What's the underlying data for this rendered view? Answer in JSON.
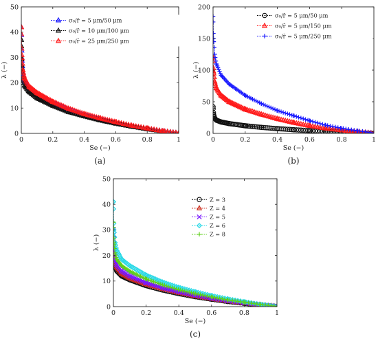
{
  "chart_data": [
    {
      "type": "line",
      "caption": "(a)",
      "xlabel": "Se (−)",
      "ylabel": "λ (−)",
      "xlim": [
        0,
        1
      ],
      "ylim": [
        0,
        50
      ],
      "xticks": [
        "0",
        "0.2",
        "0.4",
        "0.6",
        "0.8",
        "1"
      ],
      "yticks": [
        "0",
        "10",
        "20",
        "30",
        "40",
        "50"
      ],
      "legend_position": "top-right",
      "grid": false,
      "series": [
        {
          "name": "σ₀/r̄ = 5 μm/50 μm",
          "color": "#1a1aff",
          "marker": "triangle",
          "x": [
            0.0,
            0.003,
            0.01,
            0.02,
            0.05,
            0.1,
            0.2,
            0.3,
            0.4,
            0.5,
            0.6,
            0.7,
            0.8,
            0.9,
            1.0
          ],
          "y": [
            42,
            30,
            24,
            21,
            18,
            15.5,
            12,
            9.5,
            7.5,
            5.8,
            4.3,
            3.0,
            1.9,
            0.9,
            0.1
          ]
        },
        {
          "name": "σ₀/r̄ = 10 μm/100 μm",
          "color": "#111111",
          "marker": "triangle",
          "x": [
            0.0,
            0.003,
            0.01,
            0.02,
            0.05,
            0.1,
            0.2,
            0.3,
            0.4,
            0.5,
            0.6,
            0.7,
            0.8,
            0.9,
            1.0
          ],
          "y": [
            37,
            27,
            22,
            19,
            16.5,
            14,
            11,
            8.5,
            6.8,
            5.2,
            3.9,
            2.7,
            1.7,
            0.8,
            0.1
          ]
        },
        {
          "name": "σ₀/r̄ = 25 μm/250 μm",
          "color": "#ff1a1a",
          "marker": "triangle",
          "x": [
            0.0,
            0.003,
            0.01,
            0.02,
            0.05,
            0.1,
            0.2,
            0.3,
            0.4,
            0.5,
            0.6,
            0.7,
            0.8,
            0.9,
            1.0
          ],
          "y": [
            42,
            31,
            25,
            22,
            18.5,
            16,
            12.5,
            9.8,
            7.7,
            6.0,
            4.5,
            3.1,
            2.0,
            0.9,
            0.1
          ]
        }
      ]
    },
    {
      "type": "line",
      "caption": "(b)",
      "xlabel": "Se (−)",
      "ylabel": "λ (−)",
      "xlim": [
        0,
        1
      ],
      "ylim": [
        0,
        200
      ],
      "xticks": [
        "0",
        "0.2",
        "0.4",
        "0.6",
        "0.8",
        "1"
      ],
      "yticks": [
        "0",
        "50",
        "100",
        "150",
        "200"
      ],
      "legend_position": "top-right",
      "grid": false,
      "series": [
        {
          "name": "σ₀/r̄ = 5 μm/50 μm",
          "color": "#111111",
          "marker": "circle",
          "x": [
            0.0,
            0.003,
            0.01,
            0.02,
            0.05,
            0.1,
            0.2,
            0.3,
            0.4,
            0.5,
            0.6,
            0.7,
            0.8,
            0.9,
            1.0
          ],
          "y": [
            42,
            30,
            24,
            21,
            18,
            15.5,
            12,
            9.5,
            7.5,
            5.8,
            4.3,
            3.0,
            1.9,
            0.9,
            0.1
          ]
        },
        {
          "name": "σ₀/r̄ = 5 μm/150 μm",
          "color": "#ff1a1a",
          "marker": "triangle",
          "x": [
            0.0,
            0.003,
            0.01,
            0.02,
            0.05,
            0.1,
            0.2,
            0.3,
            0.4,
            0.5,
            0.6,
            0.7,
            0.8,
            0.9,
            1.0
          ],
          "y": [
            120,
            98,
            82,
            72,
            60,
            50,
            38,
            30,
            23,
            17,
            12,
            8,
            5,
            2.5,
            0.3
          ]
        },
        {
          "name": "σ₀/r̄ = 5 μm/250 μm",
          "color": "#1a1aff",
          "marker": "plus",
          "x": [
            0.0,
            0.003,
            0.01,
            0.02,
            0.05,
            0.1,
            0.2,
            0.3,
            0.4,
            0.5,
            0.6,
            0.7,
            0.8,
            0.9,
            1.0
          ],
          "y": [
            185,
            150,
            125,
            110,
            92,
            78,
            60,
            47,
            36,
            28,
            20,
            13,
            8,
            4,
            0.5
          ]
        }
      ]
    },
    {
      "type": "line",
      "caption": "(c)",
      "xlabel": "Se (−)",
      "ylabel": "λ (−)",
      "xlim": [
        0,
        1
      ],
      "ylim": [
        0,
        50
      ],
      "xticks": [
        "0",
        "0.2",
        "0.4",
        "0.6",
        "0.8",
        "1"
      ],
      "yticks": [
        "0",
        "10",
        "20",
        "30",
        "40",
        "50"
      ],
      "legend_position": "top-right",
      "grid": false,
      "series": [
        {
          "name": "Z = 3",
          "color": "#111111",
          "marker": "circle",
          "x": [
            0.0,
            0.003,
            0.01,
            0.02,
            0.05,
            0.1,
            0.2,
            0.3,
            0.4,
            0.5,
            0.6,
            0.7,
            0.8,
            0.9,
            1.0
          ],
          "y": [
            25,
            19,
            16,
            14,
            12,
            10.5,
            8.2,
            6.5,
            5.1,
            3.9,
            2.9,
            2.0,
            1.3,
            0.6,
            0.1
          ]
        },
        {
          "name": "Z = 4",
          "color": "#cc2a1a",
          "marker": "triangle",
          "x": [
            0.0,
            0.003,
            0.01,
            0.02,
            0.05,
            0.1,
            0.2,
            0.3,
            0.4,
            0.5,
            0.6,
            0.7,
            0.8,
            0.9,
            1.0
          ],
          "y": [
            28,
            21,
            17.5,
            15.5,
            13,
            11.2,
            8.8,
            7.0,
            5.5,
            4.2,
            3.1,
            2.2,
            1.4,
            0.7,
            0.1
          ]
        },
        {
          "name": "Z = 5",
          "color": "#7a1aff",
          "marker": "x",
          "x": [
            0.0,
            0.003,
            0.01,
            0.02,
            0.05,
            0.1,
            0.2,
            0.3,
            0.4,
            0.5,
            0.6,
            0.7,
            0.8,
            0.9,
            1.0
          ],
          "y": [
            30,
            22,
            18.5,
            16.5,
            14,
            12,
            9.4,
            7.4,
            5.8,
            4.5,
            3.3,
            2.3,
            1.5,
            0.7,
            0.1
          ]
        },
        {
          "name": "Z = 6",
          "color": "#2ad9e6",
          "marker": "diamond",
          "x": [
            0.0,
            0.003,
            0.01,
            0.02,
            0.05,
            0.1,
            0.2,
            0.3,
            0.4,
            0.5,
            0.6,
            0.7,
            0.8,
            0.9,
            1.0
          ],
          "y": [
            41,
            30,
            25,
            22,
            18.5,
            16,
            12.3,
            9.6,
            7.5,
            5.8,
            4.3,
            3.0,
            1.9,
            0.9,
            0.1
          ]
        },
        {
          "name": "Z = 8",
          "color": "#5fcf1a",
          "marker": "plus",
          "x": [
            0.0,
            0.003,
            0.01,
            0.02,
            0.05,
            0.1,
            0.2,
            0.3,
            0.4,
            0.5,
            0.6,
            0.7,
            0.8,
            0.9,
            1.0
          ],
          "y": [
            33,
            25,
            21,
            18.5,
            16,
            13.8,
            10.8,
            8.5,
            6.6,
            5.1,
            3.8,
            2.6,
            1.7,
            0.8,
            0.1
          ]
        }
      ]
    }
  ]
}
